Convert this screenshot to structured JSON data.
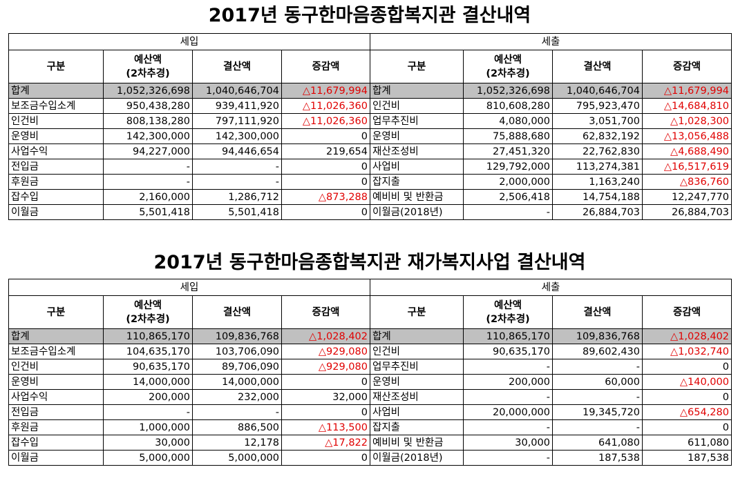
{
  "tables": [
    {
      "title": "2017년 동구한마음종합복지관 결산내역",
      "income_label": "세입",
      "expense_label": "세출",
      "columns": {
        "gubun": "구분",
        "budget": "예산액",
        "budget_sub": "(2차추경)",
        "settled": "결산액",
        "diff": "증감액"
      },
      "rows": [
        {
          "income": [
            "합계",
            "1,052,326,698",
            "1,040,646,704",
            "△11,679,994"
          ],
          "expense": [
            "합계",
            "1,052,326,698",
            "1,040,646,704",
            "△11,679,994"
          ]
        },
        {
          "income": [
            "보조금수입소계",
            "950,438,280",
            "939,411,920",
            "△11,026,360"
          ],
          "expense": [
            "인건비",
            "810,608,280",
            "795,923,470",
            "△14,684,810"
          ]
        },
        {
          "income": [
            "인건비",
            "808,138,280",
            "797,111,920",
            "△11,026,360"
          ],
          "expense": [
            "업무추진비",
            "4,080,000",
            "3,051,700",
            "△1,028,300"
          ]
        },
        {
          "income": [
            "운영비",
            "142,300,000",
            "142,300,000",
            "0"
          ],
          "expense": [
            "운영비",
            "75,888,680",
            "62,832,192",
            "△13,056,488"
          ]
        },
        {
          "income": [
            "사업수익",
            "94,227,000",
            "94,446,654",
            "219,654"
          ],
          "expense": [
            "재산조성비",
            "27,451,320",
            "22,762,830",
            "△4,688,490"
          ]
        },
        {
          "income": [
            "전입금",
            "-",
            "-",
            "0"
          ],
          "expense": [
            "사업비",
            "129,792,000",
            "113,274,381",
            "△16,517,619"
          ]
        },
        {
          "income": [
            "후원금",
            "-",
            "-",
            "0"
          ],
          "expense": [
            "잡지출",
            "2,000,000",
            "1,163,240",
            "△836,760"
          ]
        },
        {
          "income": [
            "잡수입",
            "2,160,000",
            "1,286,712",
            "△873,288"
          ],
          "expense": [
            "예비비 및 반환금",
            "2,506,418",
            "14,754,188",
            "12,247,770"
          ]
        },
        {
          "income": [
            "이월금",
            "5,501,418",
            "5,501,418",
            "0"
          ],
          "expense": [
            "이월금(2018년)",
            "-",
            "26,884,703",
            "26,884,703"
          ]
        }
      ]
    },
    {
      "title": "2017년 동구한마음종합복지관 재가복지사업 결산내역",
      "income_label": "세입",
      "expense_label": "세출",
      "columns": {
        "gubun": "구분",
        "budget": "예산액",
        "budget_sub": "(2차추경)",
        "settled": "결산액",
        "diff": "증감액"
      },
      "rows": [
        {
          "income": [
            "합계",
            "110,865,170",
            "109,836,768",
            "△1,028,402"
          ],
          "expense": [
            "합계",
            "110,865,170",
            "109,836,768",
            "△1,028,402"
          ]
        },
        {
          "income": [
            "보조금수입소계",
            "104,635,170",
            "103,706,090",
            "△929,080"
          ],
          "expense": [
            "인건비",
            "90,635,170",
            "89,602,430",
            "△1,032,740"
          ]
        },
        {
          "income": [
            "인건비",
            "90,635,170",
            "89,706,090",
            "△929,080"
          ],
          "expense": [
            "업무추진비",
            "-",
            "-",
            "0"
          ]
        },
        {
          "income": [
            "운영비",
            "14,000,000",
            "14,000,000",
            "0"
          ],
          "expense": [
            "운영비",
            "200,000",
            "60,000",
            "△140,000"
          ]
        },
        {
          "income": [
            "사업수익",
            "200,000",
            "232,000",
            "32,000"
          ],
          "expense": [
            "재산조성비",
            "-",
            "-",
            "0"
          ]
        },
        {
          "income": [
            "전입금",
            "-",
            "-",
            "0"
          ],
          "expense": [
            "사업비",
            "20,000,000",
            "19,345,720",
            "△654,280"
          ]
        },
        {
          "income": [
            "후원금",
            "1,000,000",
            "886,500",
            "△113,500"
          ],
          "expense": [
            "잡지출",
            "-",
            "-",
            "0"
          ]
        },
        {
          "income": [
            "잡수입",
            "30,000",
            "12,178",
            "△17,822"
          ],
          "expense": [
            "예비비 및 반환금",
            "30,000",
            "641,080",
            "611,080"
          ]
        },
        {
          "income": [
            "이월금",
            "5,000,000",
            "5,000,000",
            "0"
          ],
          "expense": [
            "이월금(2018년)",
            "-",
            "187,538",
            "187,538"
          ]
        }
      ]
    }
  ]
}
